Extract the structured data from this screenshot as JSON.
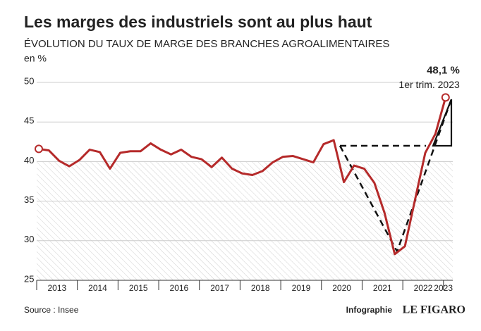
{
  "chart_data": {
    "type": "line",
    "title": "Les marges des industriels sont au plus haut",
    "subtitle": "ÉVOLUTION DU TAUX DE MARGE DES BRANCHES AGROALIMENTAIRES",
    "y_label": "en %",
    "years": [
      "2013",
      "2014",
      "2015",
      "2016",
      "2017",
      "2018",
      "2019",
      "2020",
      "2021",
      "2022",
      "2023"
    ],
    "values": [
      41.6,
      41.4,
      40.1,
      39.4,
      40.2,
      41.5,
      41.2,
      39.1,
      41.1,
      41.3,
      41.3,
      42.3,
      41.5,
      40.9,
      41.5,
      40.6,
      40.3,
      39.3,
      40.5,
      39.1,
      38.5,
      38.3,
      38.8,
      39.9,
      40.6,
      40.7,
      40.3,
      39.9,
      42.2,
      42.7,
      37.4,
      39.5,
      39.1,
      37.3,
      33.5,
      28.3,
      29.3,
      35.2,
      41.1,
      43.5,
      48.1
    ],
    "color": "#b52a2a",
    "ylim": [
      25,
      50
    ],
    "yticks": [
      25,
      30,
      35,
      40,
      45,
      50
    ],
    "grid": true,
    "annotations": [
      "48,1 %",
      "1er trim. 2023"
    ],
    "source": "Source : Insee",
    "credit": "Infographie",
    "brand": "LE FIGARO"
  }
}
